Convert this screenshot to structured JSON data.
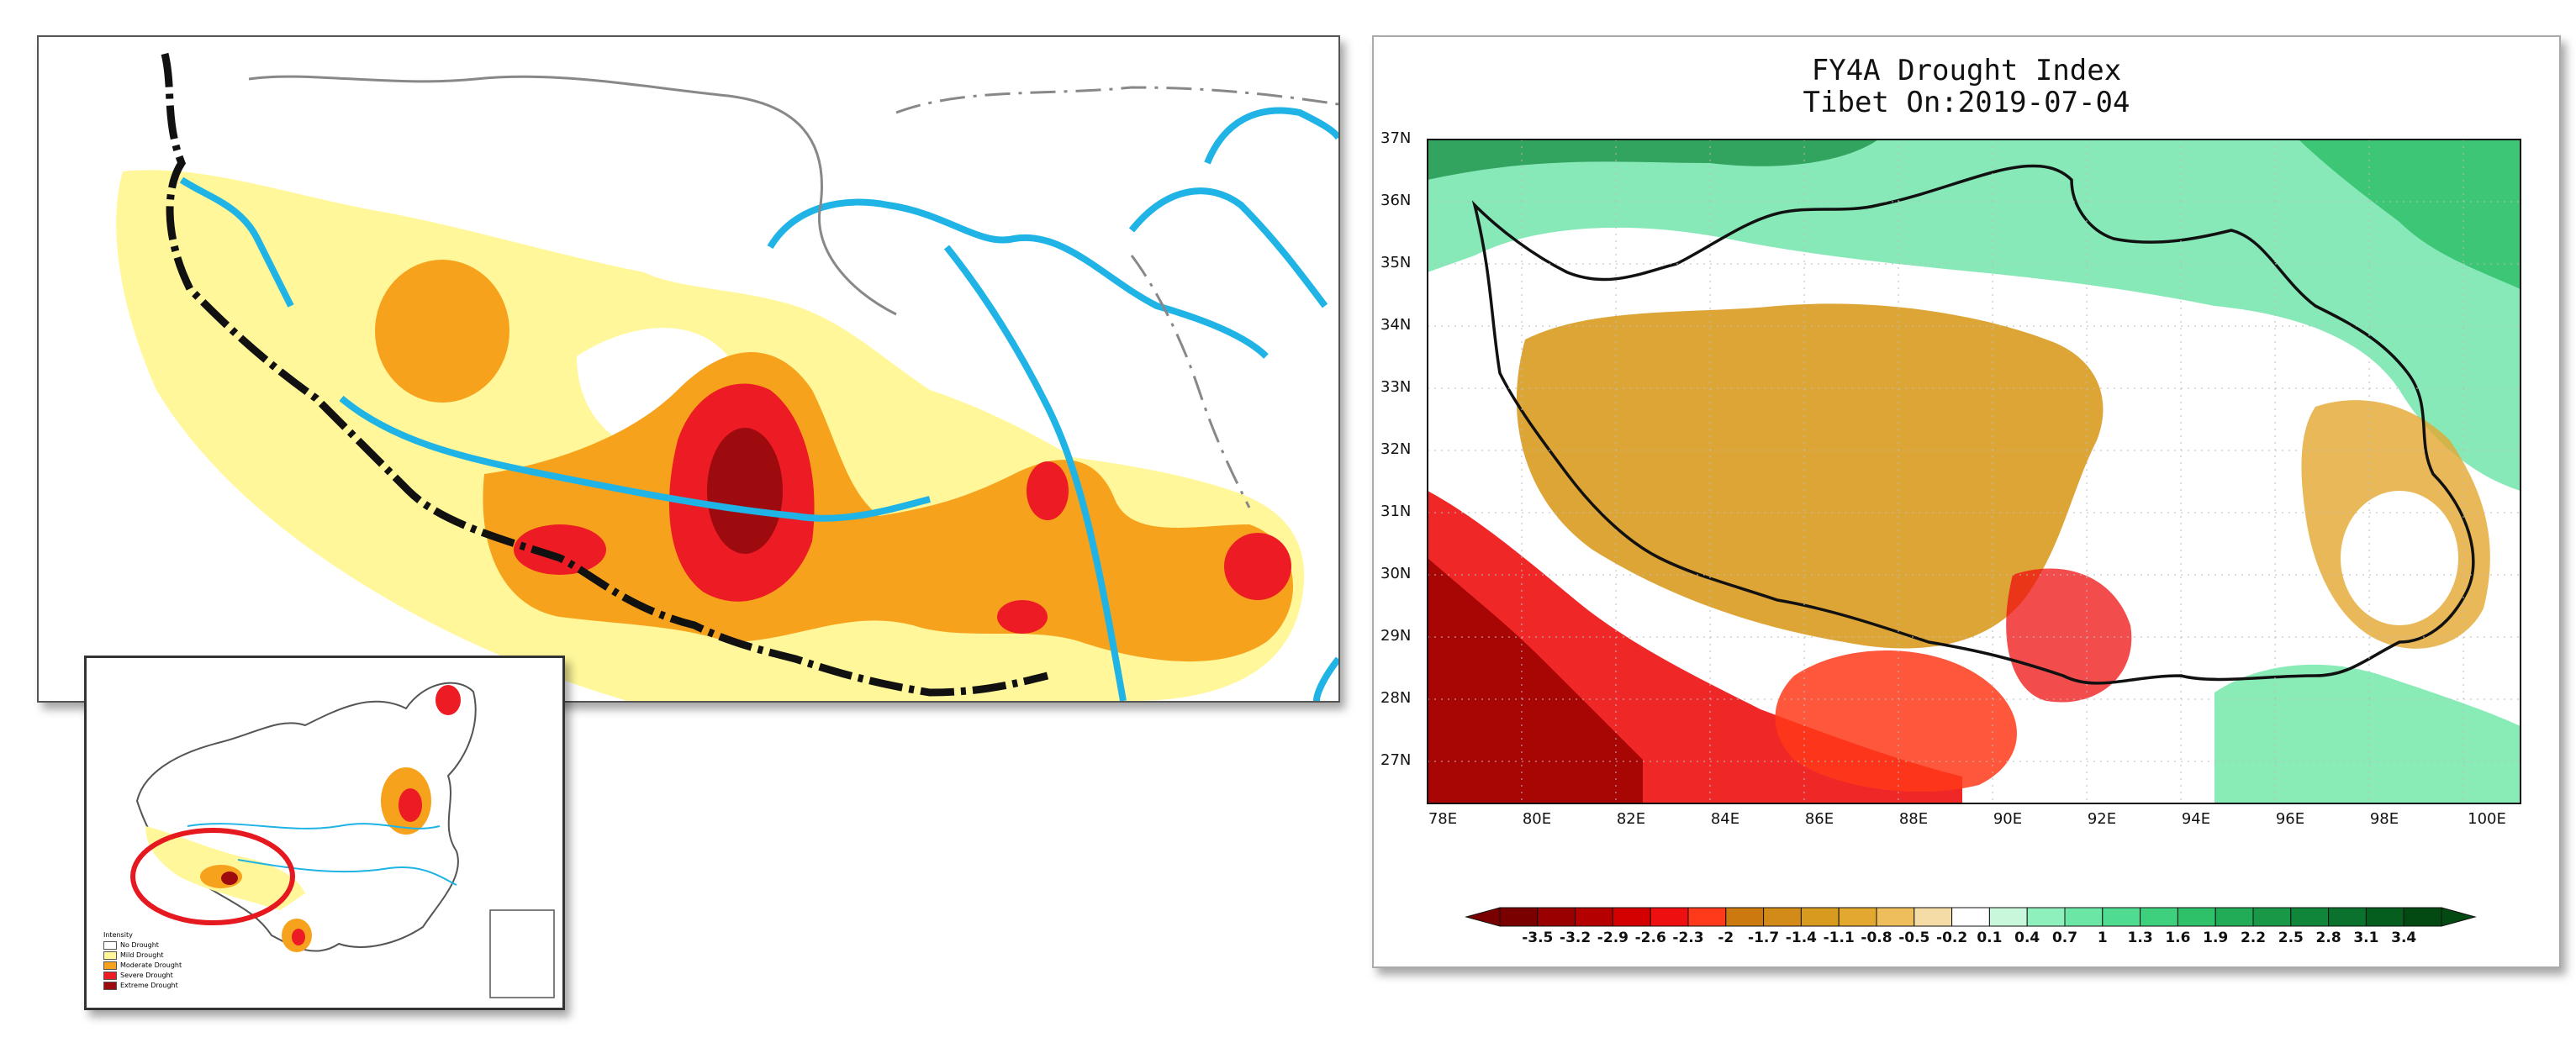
{
  "inset": {
    "legend_title": "Intensity",
    "legend": [
      {
        "label": "No Drought",
        "color": "#ffffff"
      },
      {
        "label": "Mild Drought",
        "color": "#fff799"
      },
      {
        "label": "Moderate Drought",
        "color": "#f7a21c"
      },
      {
        "label": "Severe Drought",
        "color": "#ed1c24"
      },
      {
        "label": "Extreme Drought",
        "color": "#9e0b0f"
      }
    ]
  },
  "right_map": {
    "title_line1": "FY4A Drought Index",
    "title_line2": "Tibet On:2019-07-04",
    "lat_ticks": [
      "37N",
      "36N",
      "35N",
      "34N",
      "33N",
      "32N",
      "31N",
      "30N",
      "29N",
      "28N",
      "27N"
    ],
    "lon_ticks": [
      "78E",
      "80E",
      "82E",
      "84E",
      "86E",
      "88E",
      "90E",
      "92E",
      "94E",
      "96E",
      "98E",
      "100E"
    ],
    "colorbar_labels": [
      "-3.5",
      "-3.2",
      "-2.9",
      "-2.6",
      "-2.3",
      "-2",
      "-1.7",
      "-1.4",
      "-1.1",
      "-0.8",
      "-0.5",
      "-0.2",
      "0.1",
      "0.4",
      "0.7",
      "1",
      "1.3",
      "1.6",
      "1.9",
      "2.2",
      "2.5",
      "2.8",
      "3.1",
      "3.4"
    ],
    "colorbar_colors": [
      "#7a0000",
      "#9b0000",
      "#b50000",
      "#d40000",
      "#ee1010",
      "#ff3a1a",
      "#cc7a10",
      "#d28a18",
      "#d99a20",
      "#e3a830",
      "#eebe5c",
      "#f5dca6",
      "#ffffff",
      "#c8f7dc",
      "#8ef0bc",
      "#6ce6a4",
      "#4fdc90",
      "#3fd07e",
      "#2fc06a",
      "#22ac58",
      "#199848",
      "#10863a",
      "#0a722c",
      "#055e1e",
      "#024a12"
    ]
  }
}
